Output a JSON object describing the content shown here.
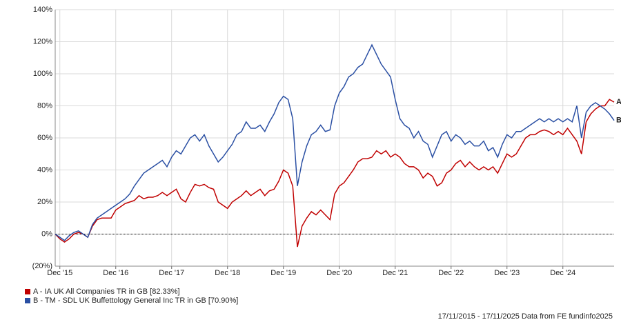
{
  "chart_data": {
    "type": "line",
    "categories": [
      null,
      "Dec '15",
      null,
      null,
      null,
      null,
      null,
      null,
      null,
      null,
      null,
      null,
      null,
      "Dec '16",
      null,
      null,
      null,
      null,
      null,
      null,
      null,
      null,
      null,
      null,
      null,
      "Dec '17",
      null,
      null,
      null,
      null,
      null,
      null,
      null,
      null,
      null,
      null,
      null,
      "Dec '18",
      null,
      null,
      null,
      null,
      null,
      null,
      null,
      null,
      null,
      null,
      null,
      "Dec '19",
      null,
      null,
      null,
      null,
      null,
      null,
      null,
      null,
      null,
      null,
      null,
      "Dec '20",
      null,
      null,
      null,
      null,
      null,
      null,
      null,
      null,
      null,
      null,
      null,
      "Dec '21",
      null,
      null,
      null,
      null,
      null,
      null,
      null,
      null,
      null,
      null,
      null,
      "Dec '22",
      null,
      null,
      null,
      null,
      null,
      null,
      null,
      null,
      null,
      null,
      null,
      "Dec '23",
      null,
      null,
      null,
      null,
      null,
      null,
      null,
      null,
      null,
      null,
      null,
      "Dec '24",
      null,
      null,
      null,
      null,
      null,
      null,
      null,
      null,
      null,
      null,
      null
    ],
    "series": [
      {
        "name": "A - IA UK All Companies TR in GB [82.33%]",
        "end_label": "A",
        "color": "#c00000",
        "values": [
          0,
          -3,
          -5,
          -3,
          0,
          1,
          0,
          -2,
          5,
          9,
          10,
          10,
          10,
          15,
          17,
          19,
          20,
          21,
          24,
          22,
          23,
          23,
          24,
          26,
          24,
          26,
          28,
          22,
          20,
          26,
          31,
          30,
          31,
          29,
          28,
          20,
          18,
          16,
          20,
          22,
          24,
          27,
          24,
          26,
          28,
          24,
          27,
          28,
          33,
          40,
          38,
          30,
          -8,
          5,
          10,
          14,
          12,
          15,
          12,
          9,
          25,
          30,
          32,
          36,
          40,
          45,
          47,
          47,
          48,
          52,
          50,
          52,
          48,
          50,
          48,
          44,
          42,
          42,
          40,
          35,
          38,
          36,
          30,
          32,
          38,
          40,
          44,
          46,
          42,
          45,
          42,
          40,
          42,
          40,
          42,
          38,
          44,
          50,
          48,
          50,
          55,
          60,
          62,
          62,
          64,
          65,
          64,
          62,
          64,
          62,
          66,
          62,
          58,
          50,
          70,
          75,
          78,
          80,
          80,
          84,
          82.33
        ]
      },
      {
        "name": "B - TM - SDL UK Buffettology General Inc TR in GB [70.90%]",
        "end_label": "B",
        "color": "#2a4fa3",
        "values": [
          0,
          -2,
          -4,
          -1,
          1,
          2,
          0,
          -2,
          6,
          10,
          12,
          14,
          16,
          18,
          20,
          22,
          25,
          30,
          34,
          38,
          40,
          42,
          44,
          46,
          42,
          48,
          52,
          50,
          55,
          60,
          62,
          58,
          62,
          55,
          50,
          45,
          48,
          52,
          56,
          62,
          64,
          70,
          66,
          66,
          68,
          64,
          70,
          75,
          82,
          86,
          84,
          72,
          30,
          45,
          55,
          62,
          64,
          68,
          64,
          65,
          80,
          88,
          92,
          98,
          100,
          104,
          106,
          112,
          118,
          112,
          106,
          102,
          98,
          84,
          72,
          68,
          66,
          60,
          64,
          58,
          56,
          48,
          55,
          62,
          64,
          58,
          62,
          60,
          56,
          58,
          55,
          55,
          58,
          52,
          54,
          48,
          56,
          62,
          60,
          64,
          64,
          66,
          68,
          70,
          72,
          70,
          72,
          70,
          72,
          70,
          72,
          70,
          80,
          60,
          76,
          80,
          82,
          80,
          78,
          75,
          70.9
        ]
      }
    ],
    "ylim": [
      -20,
      140
    ],
    "yticks": [
      {
        "value": -20,
        "label": "(20%)"
      },
      {
        "value": 0,
        "label": "0%"
      },
      {
        "value": 20,
        "label": "20%"
      },
      {
        "value": 40,
        "label": "40%"
      },
      {
        "value": 60,
        "label": "60%"
      },
      {
        "value": 80,
        "label": "80%"
      },
      {
        "value": 100,
        "label": "100%"
      },
      {
        "value": 120,
        "label": "120%"
      },
      {
        "value": 140,
        "label": "140%"
      }
    ],
    "grid": true,
    "zero_line": true,
    "footer": "17/11/2015 - 17/11/2025 Data from FE fundinfo2025"
  }
}
